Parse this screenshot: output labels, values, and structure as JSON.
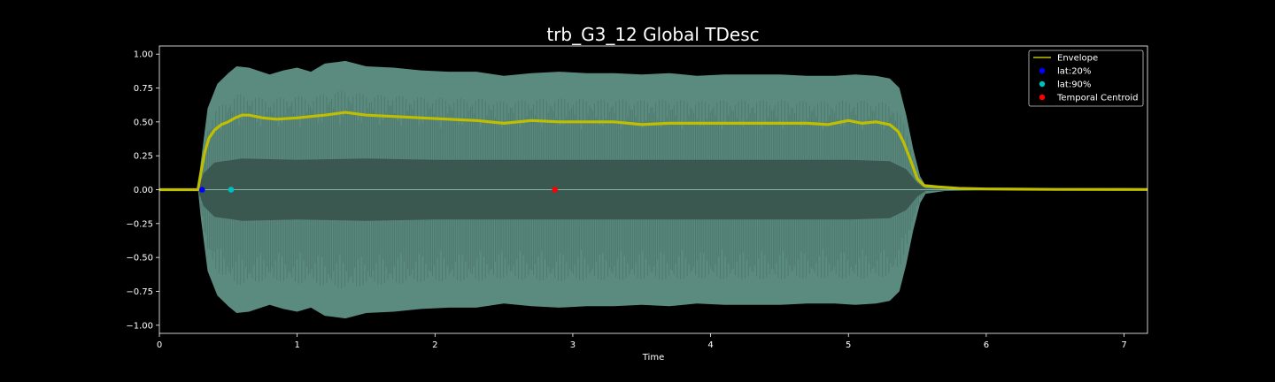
{
  "chart_data": {
    "type": "line",
    "title": "trb_G3_12 Global TDesc",
    "xlabel": "Time",
    "ylabel": "",
    "xlim": [
      0,
      7.17
    ],
    "ylim": [
      -1.06,
      1.06
    ],
    "x_ticks": [
      0,
      1,
      2,
      3,
      4,
      5,
      6,
      7
    ],
    "x_tick_labels": [
      "0",
      "1",
      "2",
      "3",
      "4",
      "5",
      "6",
      "7"
    ],
    "y_ticks": [
      1.0,
      0.75,
      0.5,
      0.25,
      0.0,
      -0.25,
      -0.5,
      -0.75,
      -1.0
    ],
    "y_tick_labels": [
      "1.00",
      "0.75",
      "0.50",
      "0.25",
      "0.00",
      "−0.25",
      "−0.50",
      "−0.75",
      "−1.00"
    ],
    "grid": false,
    "legend_position": "top-right",
    "waveform": {
      "color": "#5b8a7e",
      "inner_color": "#3a5750",
      "peak_envelope": [
        [
          0,
          0
        ],
        [
          0.28,
          0
        ],
        [
          0.3,
          0.2
        ],
        [
          0.35,
          0.6
        ],
        [
          0.42,
          0.78
        ],
        [
          0.5,
          0.86
        ],
        [
          0.56,
          0.91
        ],
        [
          0.65,
          0.9
        ],
        [
          0.8,
          0.85
        ],
        [
          0.9,
          0.88
        ],
        [
          1.0,
          0.9
        ],
        [
          1.1,
          0.87
        ],
        [
          1.2,
          0.93
        ],
        [
          1.35,
          0.95
        ],
        [
          1.5,
          0.91
        ],
        [
          1.7,
          0.9
        ],
        [
          1.9,
          0.88
        ],
        [
          2.1,
          0.87
        ],
        [
          2.3,
          0.87
        ],
        [
          2.5,
          0.84
        ],
        [
          2.7,
          0.86
        ],
        [
          2.9,
          0.87
        ],
        [
          3.1,
          0.86
        ],
        [
          3.3,
          0.86
        ],
        [
          3.5,
          0.85
        ],
        [
          3.7,
          0.86
        ],
        [
          3.9,
          0.84
        ],
        [
          4.1,
          0.85
        ],
        [
          4.3,
          0.85
        ],
        [
          4.5,
          0.85
        ],
        [
          4.7,
          0.84
        ],
        [
          4.9,
          0.84
        ],
        [
          5.05,
          0.85
        ],
        [
          5.2,
          0.84
        ],
        [
          5.3,
          0.82
        ],
        [
          5.37,
          0.75
        ],
        [
          5.42,
          0.55
        ],
        [
          5.47,
          0.3
        ],
        [
          5.52,
          0.1
        ],
        [
          5.56,
          0.03
        ],
        [
          5.7,
          0.01
        ],
        [
          6.0,
          0.004
        ],
        [
          6.5,
          0.002
        ],
        [
          7.17,
          0.001
        ]
      ],
      "inner_envelope": [
        [
          0,
          0
        ],
        [
          0.28,
          0
        ],
        [
          0.32,
          0.12
        ],
        [
          0.4,
          0.2
        ],
        [
          0.6,
          0.23
        ],
        [
          1.0,
          0.22
        ],
        [
          1.5,
          0.23
        ],
        [
          2.0,
          0.22
        ],
        [
          2.5,
          0.22
        ],
        [
          3.0,
          0.22
        ],
        [
          3.5,
          0.22
        ],
        [
          4.0,
          0.22
        ],
        [
          4.5,
          0.22
        ],
        [
          5.0,
          0.22
        ],
        [
          5.3,
          0.21
        ],
        [
          5.42,
          0.15
        ],
        [
          5.5,
          0.05
        ],
        [
          5.56,
          0.01
        ],
        [
          6.0,
          0.002
        ],
        [
          7.17,
          0
        ]
      ]
    },
    "series": [
      {
        "name": "Envelope",
        "color": "#bfbf00",
        "marker": "line",
        "points": [
          [
            0,
            0
          ],
          [
            0.28,
            0
          ],
          [
            0.3,
            0.12
          ],
          [
            0.33,
            0.28
          ],
          [
            0.36,
            0.38
          ],
          [
            0.4,
            0.44
          ],
          [
            0.45,
            0.48
          ],
          [
            0.5,
            0.5
          ],
          [
            0.55,
            0.53
          ],
          [
            0.6,
            0.55
          ],
          [
            0.65,
            0.55
          ],
          [
            0.75,
            0.53
          ],
          [
            0.85,
            0.52
          ],
          [
            1.0,
            0.53
          ],
          [
            1.1,
            0.54
          ],
          [
            1.2,
            0.55
          ],
          [
            1.35,
            0.57
          ],
          [
            1.5,
            0.55
          ],
          [
            1.7,
            0.54
          ],
          [
            1.9,
            0.53
          ],
          [
            2.1,
            0.52
          ],
          [
            2.3,
            0.51
          ],
          [
            2.5,
            0.49
          ],
          [
            2.7,
            0.51
          ],
          [
            2.9,
            0.5
          ],
          [
            3.1,
            0.5
          ],
          [
            3.3,
            0.5
          ],
          [
            3.5,
            0.48
          ],
          [
            3.7,
            0.49
          ],
          [
            3.9,
            0.49
          ],
          [
            4.1,
            0.49
          ],
          [
            4.3,
            0.49
          ],
          [
            4.5,
            0.49
          ],
          [
            4.7,
            0.49
          ],
          [
            4.85,
            0.48
          ],
          [
            5.0,
            0.51
          ],
          [
            5.1,
            0.49
          ],
          [
            5.2,
            0.5
          ],
          [
            5.3,
            0.48
          ],
          [
            5.36,
            0.43
          ],
          [
            5.4,
            0.35
          ],
          [
            5.45,
            0.22
          ],
          [
            5.5,
            0.08
          ],
          [
            5.55,
            0.03
          ],
          [
            5.65,
            0.02
          ],
          [
            5.8,
            0.01
          ],
          [
            6.0,
            0.005
          ],
          [
            6.5,
            0.002
          ],
          [
            7.17,
            0.001
          ]
        ]
      },
      {
        "name": "lat:20%",
        "color": "#0000ff",
        "marker": "dot",
        "points": [
          [
            0.31,
            0.0
          ]
        ]
      },
      {
        "name": "lat:90%",
        "color": "#00bfbf",
        "marker": "dot",
        "points": [
          [
            0.52,
            0.0
          ]
        ]
      },
      {
        "name": "Temporal Centroid",
        "color": "#ff0000",
        "marker": "dot",
        "points": [
          [
            2.87,
            0.0
          ]
        ]
      }
    ]
  }
}
